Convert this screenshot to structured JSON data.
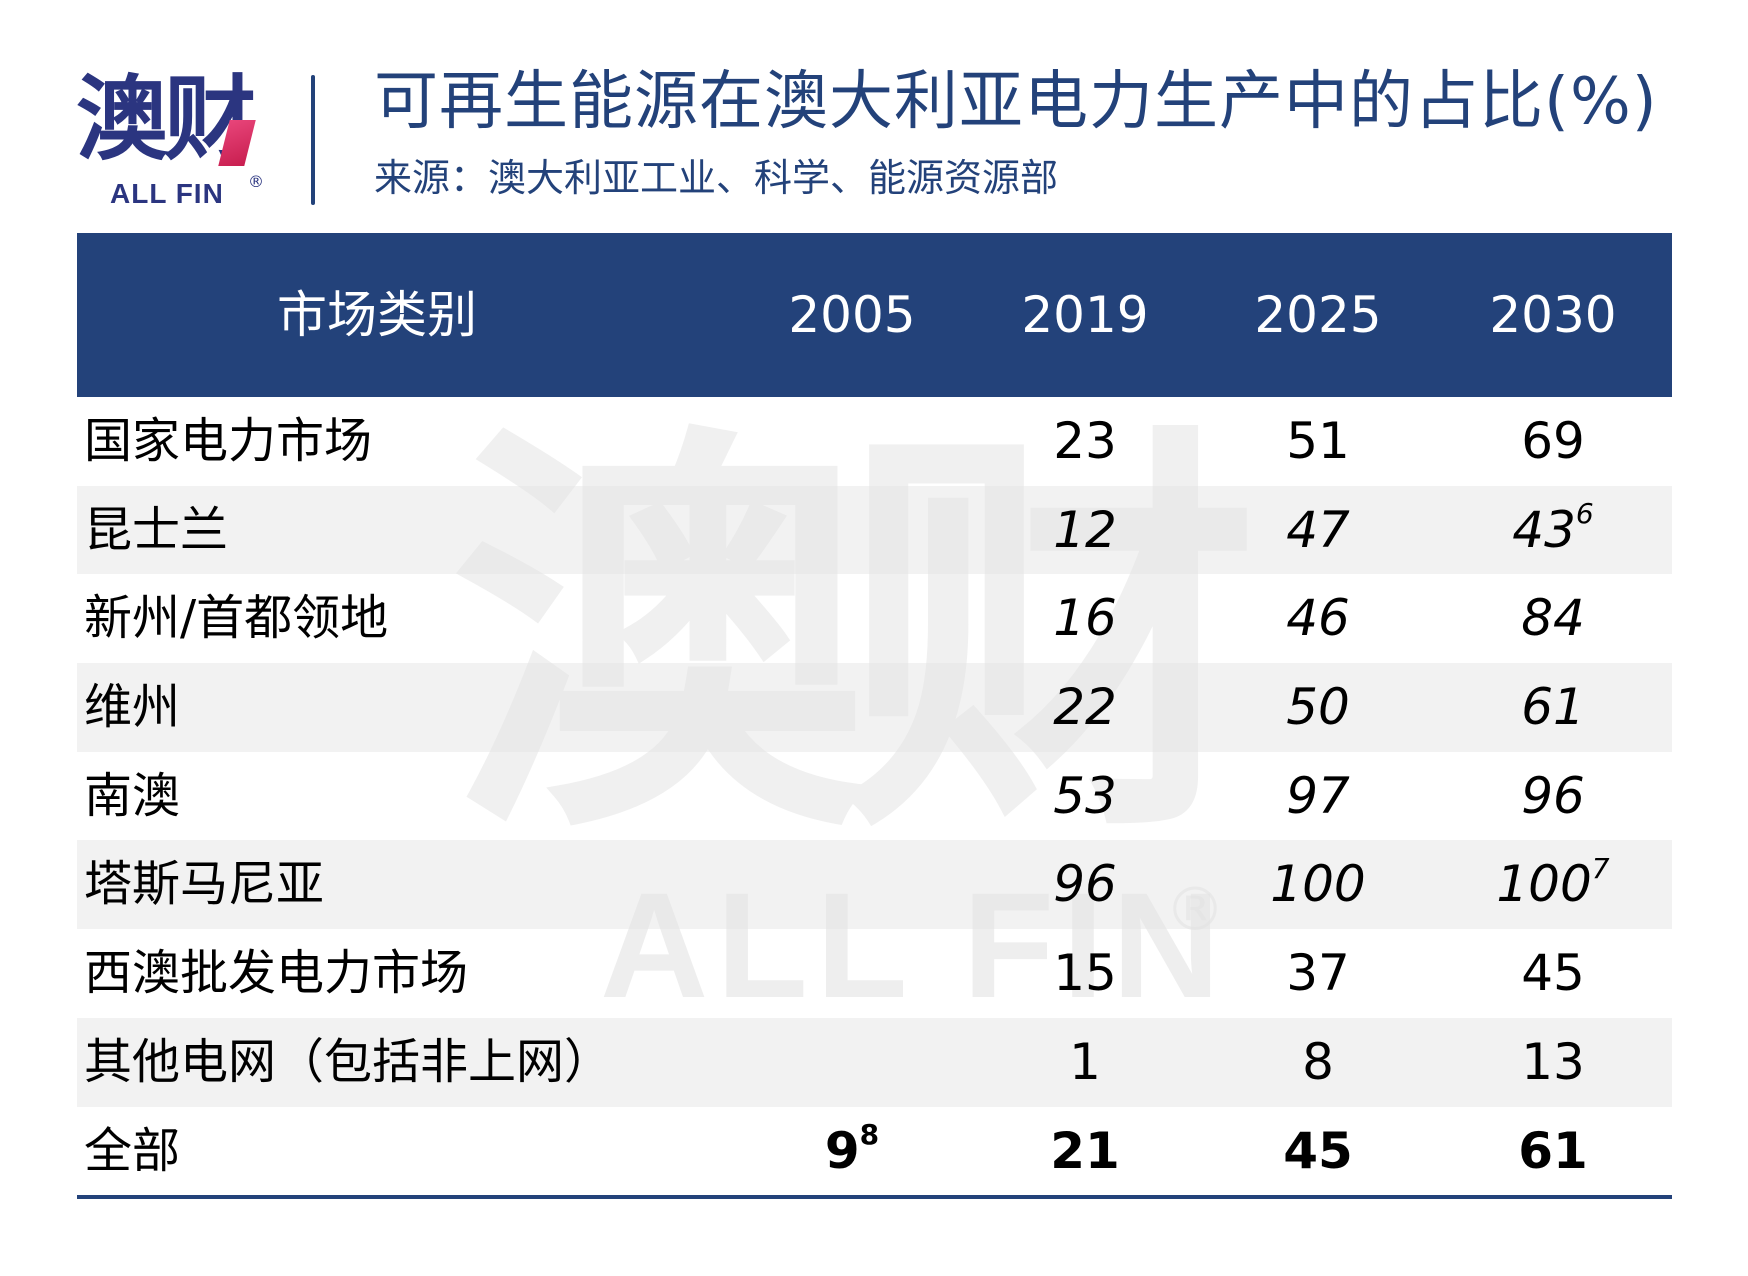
{
  "logo": {
    "cn": "澳财",
    "en": "ALL FIN",
    "registered": "®",
    "colors": {
      "primary": "#2b3580",
      "accent": "#e0306a"
    }
  },
  "header": {
    "title": "可再生能源在澳大利亚电力生产中的占比(%)",
    "subtitle": "来源：澳大利亚工业、科学、能源资源部"
  },
  "watermark": {
    "cn": "澳财",
    "en": "ALL FIN",
    "registered": "®"
  },
  "table": {
    "columns": [
      "市场类别",
      "2005",
      "2019",
      "2025",
      "2030"
    ],
    "rows": [
      {
        "label": "国家电力市场",
        "v2005": "",
        "v2019": "23",
        "v2025": "51",
        "v2030": "69",
        "v2030_sup": "",
        "italic": false
      },
      {
        "label": "昆士兰",
        "v2005": "",
        "v2019": "12",
        "v2025": "47",
        "v2030": "43",
        "v2030_sup": "6",
        "italic": true
      },
      {
        "label": "新州/首都领地",
        "v2005": "",
        "v2019": "16",
        "v2025": "46",
        "v2030": "84",
        "v2030_sup": "",
        "italic": true
      },
      {
        "label": "维州",
        "v2005": "",
        "v2019": "22",
        "v2025": "50",
        "v2030": "61",
        "v2030_sup": "",
        "italic": true
      },
      {
        "label": "南澳",
        "v2005": "",
        "v2019": "53",
        "v2025": "97",
        "v2030": "96",
        "v2030_sup": "",
        "italic": true
      },
      {
        "label": "塔斯马尼亚",
        "v2005": "",
        "v2019": "96",
        "v2025": "100",
        "v2030": "100",
        "v2030_sup": "7",
        "italic": true
      },
      {
        "label": "西澳批发电力市场",
        "v2005": "",
        "v2019": "15",
        "v2025": "37",
        "v2030": "45",
        "v2030_sup": "",
        "italic": false
      },
      {
        "label": "其他电网（包括非上网）",
        "v2005": "",
        "v2019": "1",
        "v2025": "8",
        "v2030": "13",
        "v2030_sup": "",
        "italic": false
      },
      {
        "label": "全部",
        "v2005": "9",
        "v2005_sup": "8",
        "v2019": "21",
        "v2025": "45",
        "v2030": "61",
        "v2030_sup": "",
        "bold": true
      }
    ],
    "colors": {
      "header_bg": "#23427a",
      "stripe": "#f2f2f2",
      "rule": "#23427a"
    }
  },
  "chart_data": {
    "type": "table",
    "title": "可再生能源在澳大利亚电力生产中的占比(%)",
    "subtitle": "来源：澳大利亚工业、科学、能源资源部",
    "columns": [
      "市场类别",
      "2005",
      "2019",
      "2025",
      "2030"
    ],
    "rows": [
      [
        "国家电力市场",
        null,
        23,
        51,
        69
      ],
      [
        "昆士兰",
        null,
        12,
        47,
        43
      ],
      [
        "新州/首都领地",
        null,
        16,
        46,
        84
      ],
      [
        "维州",
        null,
        22,
        50,
        61
      ],
      [
        "南澳",
        null,
        53,
        97,
        96
      ],
      [
        "塔斯马尼亚",
        null,
        96,
        100,
        100
      ],
      [
        "西澳批发电力市场",
        null,
        15,
        37,
        45
      ],
      [
        "其他电网（包括非上网）",
        null,
        1,
        8,
        13
      ],
      [
        "全部",
        9,
        21,
        45,
        61
      ]
    ],
    "footnotes": {
      "昆士兰-2030": "6",
      "塔斯马尼亚-2030": "7",
      "全部-2005": "8"
    }
  }
}
